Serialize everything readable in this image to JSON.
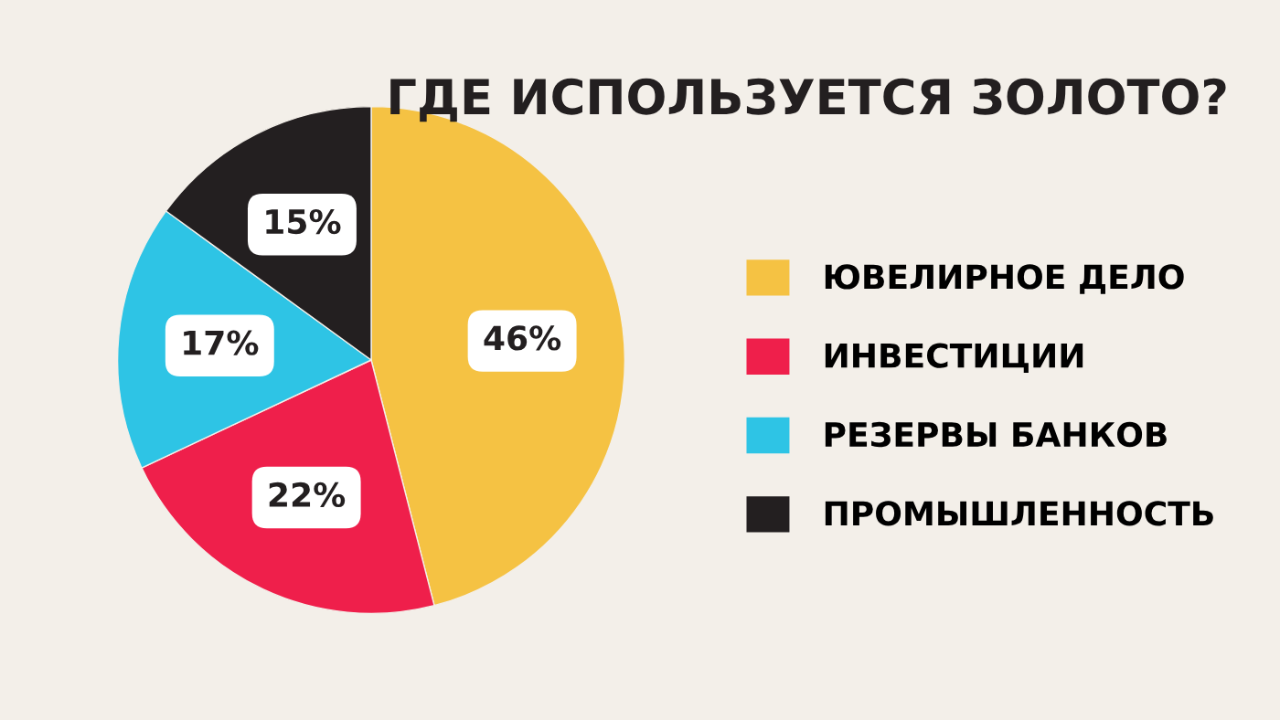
{
  "chart_data": {
    "type": "pie",
    "title": "ГДЕ ИСПОЛЬЗУЕТСЯ ЗОЛОТО?",
    "categories": [
      "ЮВЕЛИРНОЕ ДЕЛО",
      "ИНВЕСТИЦИИ",
      "РЕЗЕРВЫ БАНКОВ",
      "ПРОМЫШЛЕННОСТЬ"
    ],
    "values": [
      46,
      22,
      17,
      15
    ],
    "colors": [
      "#f5c243",
      "#ef1f4b",
      "#2ec4e5",
      "#231f20"
    ],
    "value_labels": [
      "46%",
      "22%",
      "17%",
      "15%"
    ],
    "legend": "right"
  }
}
